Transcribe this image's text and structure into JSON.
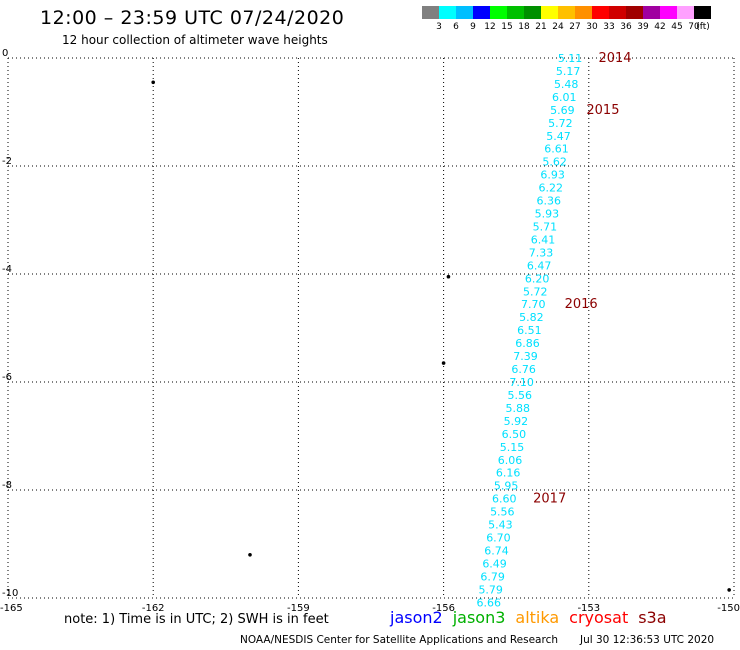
{
  "header": {
    "title": "12:00 – 23:59 UTC 07/24/2020",
    "subtitle": "12 hour collection of altimeter wave heights"
  },
  "legend": {
    "colors": [
      "#808080",
      "#00ffff",
      "#00bfff",
      "#0000ff",
      "#00ff00",
      "#00c000",
      "#009000",
      "#ffff00",
      "#ffc000",
      "#ff9000",
      "#ff0000",
      "#d00000",
      "#a00000",
      "#a000a0",
      "#ff00ff",
      "#ffa0ff",
      "#000000"
    ],
    "labels": [
      "3",
      "6",
      "9",
      "12",
      "15",
      "18",
      "21",
      "24",
      "27",
      "30",
      "33",
      "36",
      "39",
      "42",
      "45",
      "70",
      "(ft)"
    ]
  },
  "chart_data": {
    "type": "scatter",
    "x_ticks": [
      "-165",
      "-162",
      "-159",
      "-156",
      "-153",
      "-150"
    ],
    "y_ticks": [
      "0",
      "-2",
      "-4",
      "-6",
      "-8",
      "-10"
    ],
    "xlim": [
      -165,
      -150
    ],
    "ylim": [
      -10,
      0
    ],
    "grid": true,
    "label_color": "#00e0ff",
    "time_color": "#8b0000",
    "points": [
      {
        "lon": -153.64,
        "lat": 0.0,
        "value": "5.11"
      },
      {
        "lon": -153.68,
        "lat": -0.24,
        "value": "5.17"
      },
      {
        "lon": -153.72,
        "lat": -0.48,
        "value": "5.48"
      },
      {
        "lon": -153.76,
        "lat": -0.72,
        "value": "6.01"
      },
      {
        "lon": -153.8,
        "lat": -0.96,
        "value": "5.69"
      },
      {
        "lon": -153.84,
        "lat": -1.2,
        "value": "5.72"
      },
      {
        "lon": -153.88,
        "lat": -1.44,
        "value": "5.47"
      },
      {
        "lon": -153.92,
        "lat": -1.68,
        "value": "6.61"
      },
      {
        "lon": -153.96,
        "lat": -1.92,
        "value": "5.62"
      },
      {
        "lon": -154.0,
        "lat": -2.16,
        "value": "6.93"
      },
      {
        "lon": -154.04,
        "lat": -2.4,
        "value": "6.22"
      },
      {
        "lon": -154.08,
        "lat": -2.64,
        "value": "6.36"
      },
      {
        "lon": -154.12,
        "lat": -2.88,
        "value": "5.93"
      },
      {
        "lon": -154.16,
        "lat": -3.12,
        "value": "5.71"
      },
      {
        "lon": -154.2,
        "lat": -3.36,
        "value": "6.41"
      },
      {
        "lon": -154.24,
        "lat": -3.6,
        "value": "7.33"
      },
      {
        "lon": -154.28,
        "lat": -3.84,
        "value": "6.47"
      },
      {
        "lon": -154.32,
        "lat": -4.08,
        "value": "6.20"
      },
      {
        "lon": -154.36,
        "lat": -4.32,
        "value": "5.72"
      },
      {
        "lon": -154.4,
        "lat": -4.56,
        "value": "7.70"
      },
      {
        "lon": -154.44,
        "lat": -4.8,
        "value": "5.82"
      },
      {
        "lon": -154.48,
        "lat": -5.04,
        "value": "6.51"
      },
      {
        "lon": -154.52,
        "lat": -5.28,
        "value": "6.86"
      },
      {
        "lon": -154.56,
        "lat": -5.52,
        "value": "7.39"
      },
      {
        "lon": -154.6,
        "lat": -5.76,
        "value": "6.76"
      },
      {
        "lon": -154.64,
        "lat": -6.0,
        "value": "7.10"
      },
      {
        "lon": -154.68,
        "lat": -6.24,
        "value": "5.56"
      },
      {
        "lon": -154.72,
        "lat": -6.48,
        "value": "5.88"
      },
      {
        "lon": -154.76,
        "lat": -6.72,
        "value": "5.92"
      },
      {
        "lon": -154.8,
        "lat": -6.96,
        "value": "6.50"
      },
      {
        "lon": -154.84,
        "lat": -7.2,
        "value": "5.15"
      },
      {
        "lon": -154.88,
        "lat": -7.44,
        "value": "6.06"
      },
      {
        "lon": -154.92,
        "lat": -7.68,
        "value": "6.16"
      },
      {
        "lon": -154.96,
        "lat": -7.92,
        "value": "5.95"
      },
      {
        "lon": -155.0,
        "lat": -8.16,
        "value": "6.60"
      },
      {
        "lon": -155.04,
        "lat": -8.4,
        "value": "5.56"
      },
      {
        "lon": -155.08,
        "lat": -8.64,
        "value": "5.43"
      },
      {
        "lon": -155.12,
        "lat": -8.88,
        "value": "6.70"
      },
      {
        "lon": -155.16,
        "lat": -9.12,
        "value": "6.74"
      },
      {
        "lon": -155.2,
        "lat": -9.36,
        "value": "6.49"
      },
      {
        "lon": -155.24,
        "lat": -9.6,
        "value": "6.79"
      },
      {
        "lon": -155.28,
        "lat": -9.84,
        "value": "5.79"
      },
      {
        "lon": -155.32,
        "lat": -10.08,
        "value": "6.66"
      }
    ],
    "time_labels": [
      {
        "lon": -152.8,
        "lat": 0.0,
        "value": "2014"
      },
      {
        "lon": -153.05,
        "lat": -0.96,
        "value": "2015"
      },
      {
        "lon": -153.5,
        "lat": -4.56,
        "value": "2016"
      },
      {
        "lon": -154.15,
        "lat": -8.16,
        "value": "2017"
      }
    ],
    "islands": [
      {
        "lon": -162.0,
        "lat": -0.45
      },
      {
        "lon": -155.9,
        "lat": -4.05
      },
      {
        "lon": -156.0,
        "lat": -5.65
      },
      {
        "lon": -160.0,
        "lat": -9.2
      },
      {
        "lon": -150.1,
        "lat": -9.85
      }
    ]
  },
  "footer": {
    "note": "note:  1) Time is in UTC;  2) SWH is in feet",
    "satellites": [
      {
        "name": "jason2",
        "color": "#0000ff"
      },
      {
        "name": "jason3",
        "color": "#00b000"
      },
      {
        "name": "altika",
        "color": "#ff9900"
      },
      {
        "name": "cryosat",
        "color": "#ff0000"
      },
      {
        "name": "s3a",
        "color": "#8b0000"
      }
    ],
    "org": "NOAA/NESDIS Center for Satellite Applications and Research",
    "timestamp": "Jul 30 12:36:53 UTC 2020"
  }
}
